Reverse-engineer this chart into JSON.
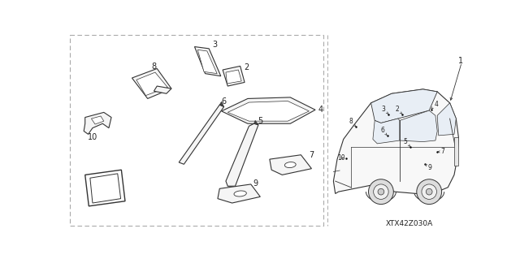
{
  "bg_color": "#ffffff",
  "border_color": "#aaaaaa",
  "line_color": "#333333",
  "text_color": "#222222",
  "diagram_code": "XTX42Z030A",
  "fig_w": 6.4,
  "fig_h": 3.19,
  "dpi": 100
}
